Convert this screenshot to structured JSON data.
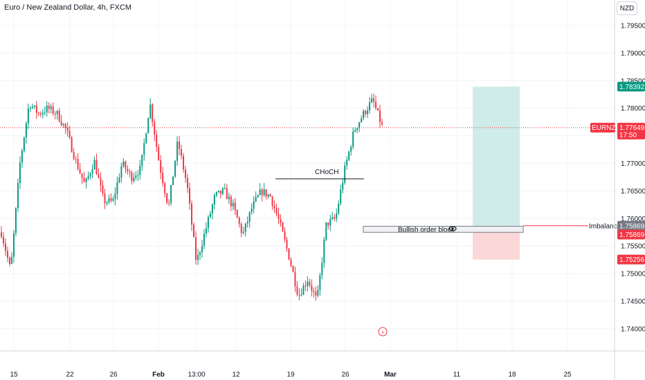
{
  "header": {
    "title": "Euro / New Zealand Dollar, 4h, FXCM",
    "currency": "NZD"
  },
  "colors": {
    "up": "#089981",
    "down": "#f23645",
    "grid": "#f0f3fa",
    "axis": "#d1d4dc",
    "target_zone": "#cfece8",
    "stop_zone": "#fbd7d8",
    "order_block": "#f0f1f3"
  },
  "chart_data": {
    "type": "candlestick",
    "symbol": "EURNZD",
    "timeframe": "4h",
    "y_ticks": [
      "1.79500",
      "1.79000",
      "1.78500",
      "1.78000",
      "1.77500",
      "1.77000",
      "1.76500",
      "1.76000",
      "1.75500",
      "1.75000",
      "1.74500",
      "1.74000"
    ],
    "x_ticks": [
      {
        "label": "15",
        "bold": false
      },
      {
        "label": "22",
        "bold": false
      },
      {
        "label": "26",
        "bold": false
      },
      {
        "label": "Feb",
        "bold": true
      },
      {
        "label": "13:00",
        "bold": false
      },
      {
        "label": "12",
        "bold": false
      },
      {
        "label": "19",
        "bold": false
      },
      {
        "label": "26",
        "bold": false
      },
      {
        "label": "Mar",
        "bold": true
      },
      {
        "label": "11",
        "bold": false
      },
      {
        "label": "18",
        "bold": false
      },
      {
        "label": "25",
        "bold": false
      }
    ],
    "trend_waypoints": [
      [
        1.7575,
        1.7505,
        1.77,
        1.781,
        1.779,
        1.78,
        1.779,
        1.776,
        1.7705,
        1.766,
        1.7705,
        1.7632
      ],
      [
        1.763,
        1.77,
        1.7675,
        1.769,
        1.781,
        1.77,
        1.762,
        1.774,
        1.766,
        1.752,
        1.758,
        1.764
      ],
      [
        1.765,
        1.762,
        1.757,
        1.762,
        1.765,
        1.764,
        1.759,
        1.753,
        1.746,
        1.749,
        1.745,
        1.759
      ],
      [
        1.76,
        1.769,
        1.776,
        1.779,
        1.7815,
        1.7767
      ]
    ],
    "last_price": 1.77649,
    "annotations": {
      "choch_label": "CHoCH",
      "choch_level": 1.7672,
      "order_block_label": "Bullish order block",
      "order_block_top": 1.7586,
      "order_block_bottom": 1.7575,
      "imbalance_label": "Imbalance",
      "imbalance_level": 1.75869
    },
    "position": {
      "target": 1.78392,
      "entry": 1.75869,
      "stop": 1.75256
    },
    "price_labels": {
      "target": "1.78392",
      "last": "1.77649",
      "last_symbol": "EURNZD",
      "countdown": "17:50",
      "imbalance": "1.75869",
      "entry": "1.75869",
      "stop": "1.75256"
    }
  }
}
